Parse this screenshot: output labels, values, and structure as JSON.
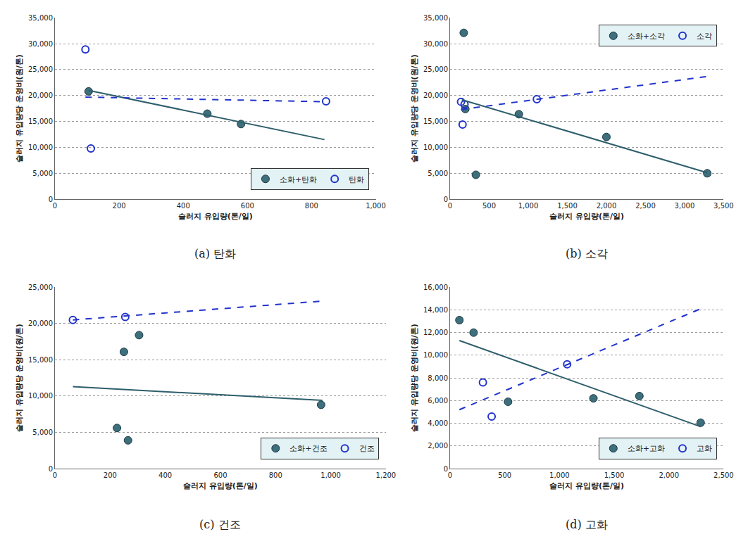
{
  "chart_data": [
    {
      "type": "scatter",
      "title": "(a) 탄화",
      "x_label": "슬러지 유입량(톤/일)",
      "y_label": "슬러지 유입량당 운영비(원/톤)",
      "xlim": [
        0,
        1000
      ],
      "xticks": [
        0,
        200,
        400,
        600,
        800,
        {
          "value": 1000,
          "label": "1,000"
        }
      ],
      "ylim": [
        0,
        35000
      ],
      "yticks": [
        0,
        {
          "value": 5000,
          "label": "5,000"
        },
        {
          "value": 10000,
          "label": "10,000"
        },
        {
          "value": 15000,
          "label": "15,000"
        },
        {
          "value": 20000,
          "label": "20,000"
        },
        {
          "value": 25000,
          "label": "25,000"
        },
        {
          "value": 30000,
          "label": "30,000"
        },
        {
          "value": 35000,
          "label": "35,000"
        }
      ],
      "grid": true,
      "legend": "lower right",
      "series": [
        {
          "name": "소화+탄화",
          "type": "scatter",
          "marker": "circle",
          "color": "#3d6f7c",
          "x": [
            105,
            475,
            580
          ],
          "values": [
            20800,
            16500,
            14500
          ]
        },
        {
          "name": "탄화",
          "type": "scatter",
          "marker": "circle-open",
          "color": "#2233cc",
          "x": [
            95,
            112,
            845
          ],
          "values": [
            28900,
            9800,
            18900
          ]
        },
        {
          "type": "line",
          "line_style": "solid",
          "color": "#2e5e6b",
          "x": [
            105,
            840
          ],
          "values": [
            21000,
            11500
          ]
        },
        {
          "type": "line",
          "line_style": "dashed",
          "color": "#2233cc",
          "x": [
            95,
            845
          ],
          "values": [
            19700,
            18800
          ]
        }
      ]
    },
    {
      "type": "scatter",
      "title": "(b) 소각",
      "x_label": "슬러지 유입량(톤/일)",
      "y_label": "슬러지 유입량당 운영비(원/톤)",
      "xlim": [
        0,
        3500
      ],
      "xticks": [
        0,
        500,
        {
          "value": 1000,
          "label": "1,000"
        },
        {
          "value": 1500,
          "label": "1,500"
        },
        {
          "value": 2000,
          "label": "2,000"
        },
        {
          "value": 2500,
          "label": "2,500"
        },
        {
          "value": 3000,
          "label": "3,000"
        },
        {
          "value": 3500,
          "label": "3,500"
        }
      ],
      "ylim": [
        0,
        35000
      ],
      "yticks": [
        0,
        {
          "value": 5000,
          "label": "5,000"
        },
        {
          "value": 10000,
          "label": "10,000"
        },
        {
          "value": 15000,
          "label": "15,000"
        },
        {
          "value": 20000,
          "label": "20,000"
        },
        {
          "value": 25000,
          "label": "25,000"
        },
        {
          "value": 30000,
          "label": "30,000"
        },
        {
          "value": 35000,
          "label": "35,000"
        }
      ],
      "grid": true,
      "legend": "upper right",
      "series": [
        {
          "name": "소화+소각",
          "type": "scatter",
          "marker": "circle",
          "color": "#3d6f7c",
          "x": [
            175,
            195,
            330,
            880,
            2000,
            3290
          ],
          "values": [
            32100,
            17400,
            4700,
            16400,
            12000,
            5000
          ]
        },
        {
          "name": "소각",
          "type": "scatter",
          "marker": "circle-open",
          "color": "#2233cc",
          "x": [
            140,
            160,
            185,
            1110
          ],
          "values": [
            18800,
            14400,
            18300,
            19300
          ]
        },
        {
          "type": "line",
          "line_style": "solid",
          "color": "#2e5e6b",
          "x": [
            150,
            3290
          ],
          "values": [
            19200,
            5100
          ]
        },
        {
          "type": "line",
          "line_style": "dashed",
          "color": "#2233cc",
          "x": [
            140,
            3300
          ],
          "values": [
            17300,
            23700
          ]
        }
      ]
    },
    {
      "type": "scatter",
      "title": "(c) 건조",
      "x_label": "슬러지 유입량(톤/일)",
      "y_label": "슬러지 유입량당 운영비(원/톤)",
      "xlim": [
        0,
        1200
      ],
      "xticks": [
        0,
        200,
        400,
        600,
        800,
        {
          "value": 1000,
          "label": "1,000"
        },
        {
          "value": 1200,
          "label": "1,200"
        }
      ],
      "ylim": [
        0,
        25000
      ],
      "yticks": [
        0,
        {
          "value": 5000,
          "label": "5,000"
        },
        {
          "value": 10000,
          "label": "10,000"
        },
        {
          "value": 15000,
          "label": "15,000"
        },
        {
          "value": 20000,
          "label": "20,000"
        },
        {
          "value": 25000,
          "label": "25,000"
        }
      ],
      "grid": true,
      "legend": "lower right",
      "series": [
        {
          "name": "소화+건조",
          "type": "scatter",
          "marker": "circle",
          "color": "#3d6f7c",
          "x": [
            225,
            250,
            265,
            305,
            965
          ],
          "values": [
            5600,
            16100,
            3900,
            18400,
            8800
          ]
        },
        {
          "name": "건조",
          "type": "scatter",
          "marker": "circle-open",
          "color": "#2233cc",
          "x": [
            65,
            255
          ],
          "values": [
            20500,
            20900
          ]
        },
        {
          "type": "line",
          "line_style": "solid",
          "color": "#2e5e6b",
          "x": [
            65,
            970
          ],
          "values": [
            11300,
            9400
          ]
        },
        {
          "type": "line",
          "line_style": "dashed",
          "color": "#2233cc",
          "x": [
            65,
            970
          ],
          "values": [
            20500,
            23100
          ]
        }
      ]
    },
    {
      "type": "scatter",
      "title": "(d) 고화",
      "x_label": "슬러지 유입량(톤/일)",
      "y_label": "슬러지 유입량당 운영비(원/톤)",
      "xlim": [
        0,
        2500
      ],
      "xticks": [
        0,
        500,
        {
          "value": 1000,
          "label": "1,000"
        },
        {
          "value": 1500,
          "label": "1,500"
        },
        {
          "value": 2000,
          "label": "2,000"
        },
        {
          "value": 2500,
          "label": "2,500"
        }
      ],
      "ylim": [
        0,
        16000
      ],
      "yticks": [
        0,
        {
          "value": 2000,
          "label": "2,000"
        },
        {
          "value": 4000,
          "label": "4,000"
        },
        {
          "value": 6000,
          "label": "6,000"
        },
        {
          "value": 8000,
          "label": "8,000"
        },
        {
          "value": 10000,
          "label": "10,000"
        },
        {
          "value": 12000,
          "label": "12,000"
        },
        {
          "value": 14000,
          "label": "14,000"
        },
        {
          "value": 16000,
          "label": "16,000"
        }
      ],
      "grid": true,
      "legend": "lower right",
      "series": [
        {
          "name": "소화+고화",
          "type": "scatter",
          "marker": "circle",
          "color": "#3d6f7c",
          "x": [
            85,
            215,
            530,
            1310,
            1730,
            2290
          ],
          "values": [
            13100,
            12000,
            5900,
            6200,
            6400,
            4050
          ]
        },
        {
          "name": "고화",
          "type": "scatter",
          "marker": "circle-open",
          "color": "#2233cc",
          "x": [
            300,
            380,
            1070
          ],
          "values": [
            7600,
            4600,
            9200
          ]
        },
        {
          "type": "line",
          "line_style": "solid",
          "color": "#2e5e6b",
          "x": [
            85,
            2290
          ],
          "values": [
            11300,
            3700
          ]
        },
        {
          "type": "line",
          "line_style": "dashed",
          "color": "#2233cc",
          "x": [
            85,
            2290
          ],
          "values": [
            5200,
            14100
          ]
        }
      ]
    }
  ]
}
